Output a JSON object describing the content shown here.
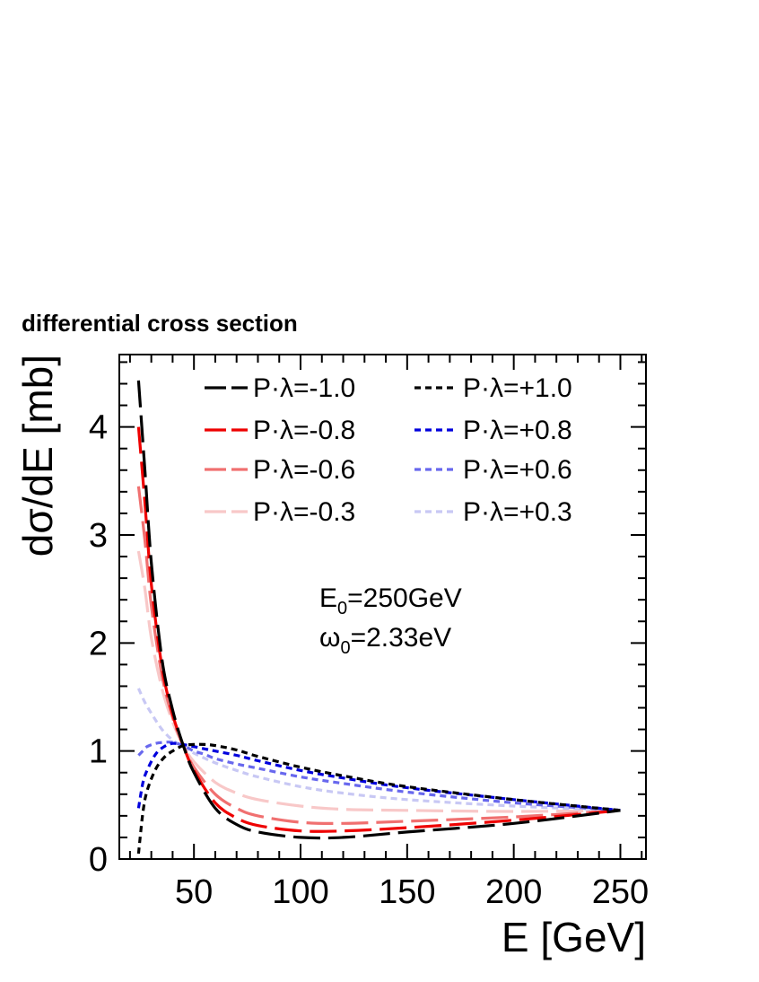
{
  "chart_data": {
    "type": "line",
    "title": "differential cross section",
    "xlabel": "E [GeV]",
    "ylabel": "dσ/dE [mb]",
    "xlim": [
      15,
      262
    ],
    "ylim": [
      0,
      4.67
    ],
    "xticks": [
      50,
      100,
      150,
      200,
      250
    ],
    "yticks": [
      0,
      1,
      2,
      3,
      4
    ],
    "grid": false,
    "legend_position": "top-right",
    "annotations": {
      "energy": {
        "prefix": "E",
        "sub": "0",
        "suffix": "=250GeV"
      },
      "photon": {
        "prefix": "ω",
        "sub": "0",
        "suffix": "=2.33eV"
      }
    },
    "series": [
      {
        "name": "P·λ=-1.0",
        "color": "#000000",
        "dash": "long",
        "x": [
          24.0,
          27,
          30,
          35,
          40,
          45,
          50,
          60,
          70,
          80,
          100,
          120,
          150,
          200,
          250
        ],
        "y": [
          4.43,
          3.6,
          2.75,
          1.85,
          1.38,
          1.05,
          0.8,
          0.47,
          0.32,
          0.25,
          0.2,
          0.2,
          0.25,
          0.33,
          0.45
        ]
      },
      {
        "name": "P·λ=-0.8",
        "color": "#ee0000",
        "dash": "long",
        "x": [
          24.0,
          27,
          30,
          35,
          40,
          45,
          50,
          60,
          70,
          80,
          100,
          120,
          150,
          200,
          250
        ],
        "y": [
          4.0,
          3.3,
          2.55,
          1.78,
          1.34,
          1.05,
          0.82,
          0.52,
          0.38,
          0.31,
          0.26,
          0.26,
          0.29,
          0.36,
          0.45
        ]
      },
      {
        "name": "P·λ=-0.6",
        "color": "#f07070",
        "dash": "long",
        "x": [
          24.0,
          27,
          30,
          35,
          40,
          45,
          50,
          60,
          70,
          80,
          100,
          120,
          150,
          200,
          250
        ],
        "y": [
          3.45,
          2.95,
          2.35,
          1.7,
          1.31,
          1.05,
          0.85,
          0.6,
          0.47,
          0.4,
          0.34,
          0.33,
          0.35,
          0.39,
          0.45
        ]
      },
      {
        "name": "P·λ=-0.3",
        "color": "#f8c8c8",
        "dash": "long",
        "x": [
          24.0,
          27,
          30,
          35,
          40,
          45,
          50,
          60,
          70,
          80,
          100,
          120,
          150,
          200,
          250
        ],
        "y": [
          2.85,
          2.5,
          2.05,
          1.58,
          1.27,
          1.05,
          0.9,
          0.71,
          0.61,
          0.55,
          0.49,
          0.46,
          0.45,
          0.44,
          0.45
        ]
      },
      {
        "name": "P·λ=+1.0",
        "color": "#000000",
        "dash": "short",
        "x": [
          24.0,
          26,
          28,
          32,
          36,
          40,
          45,
          50,
          55,
          60,
          70,
          80,
          100,
          120,
          150,
          200,
          250
        ],
        "y": [
          0.05,
          0.42,
          0.63,
          0.83,
          0.94,
          1.0,
          1.05,
          1.06,
          1.06,
          1.05,
          1.01,
          0.95,
          0.85,
          0.77,
          0.67,
          0.55,
          0.45
        ]
      },
      {
        "name": "P·λ=+0.8",
        "color": "#0000dd",
        "dash": "short",
        "x": [
          24.0,
          26,
          28,
          32,
          36,
          40,
          45,
          50,
          55,
          60,
          70,
          80,
          100,
          120,
          150,
          200,
          250
        ],
        "y": [
          0.47,
          0.7,
          0.82,
          0.97,
          1.04,
          1.07,
          1.06,
          1.04,
          1.02,
          1.0,
          0.96,
          0.91,
          0.82,
          0.75,
          0.66,
          0.55,
          0.45
        ]
      },
      {
        "name": "P·λ=+0.6",
        "color": "#6868ee",
        "dash": "short",
        "x": [
          24.0,
          26,
          28,
          32,
          36,
          40,
          45,
          50,
          55,
          60,
          70,
          80,
          100,
          120,
          150,
          200,
          250
        ],
        "y": [
          0.96,
          1.0,
          1.04,
          1.07,
          1.08,
          1.08,
          1.05,
          1.0,
          0.97,
          0.93,
          0.88,
          0.84,
          0.76,
          0.7,
          0.62,
          0.52,
          0.45
        ]
      },
      {
        "name": "P·λ=+0.3",
        "color": "#c8c8f4",
        "dash": "short",
        "x": [
          24.0,
          27,
          30,
          35,
          40,
          45,
          50,
          60,
          70,
          80,
          100,
          120,
          150,
          200,
          250
        ],
        "y": [
          1.58,
          1.45,
          1.35,
          1.2,
          1.1,
          1.04,
          0.98,
          0.89,
          0.82,
          0.76,
          0.67,
          0.61,
          0.55,
          0.49,
          0.45
        ]
      }
    ]
  }
}
